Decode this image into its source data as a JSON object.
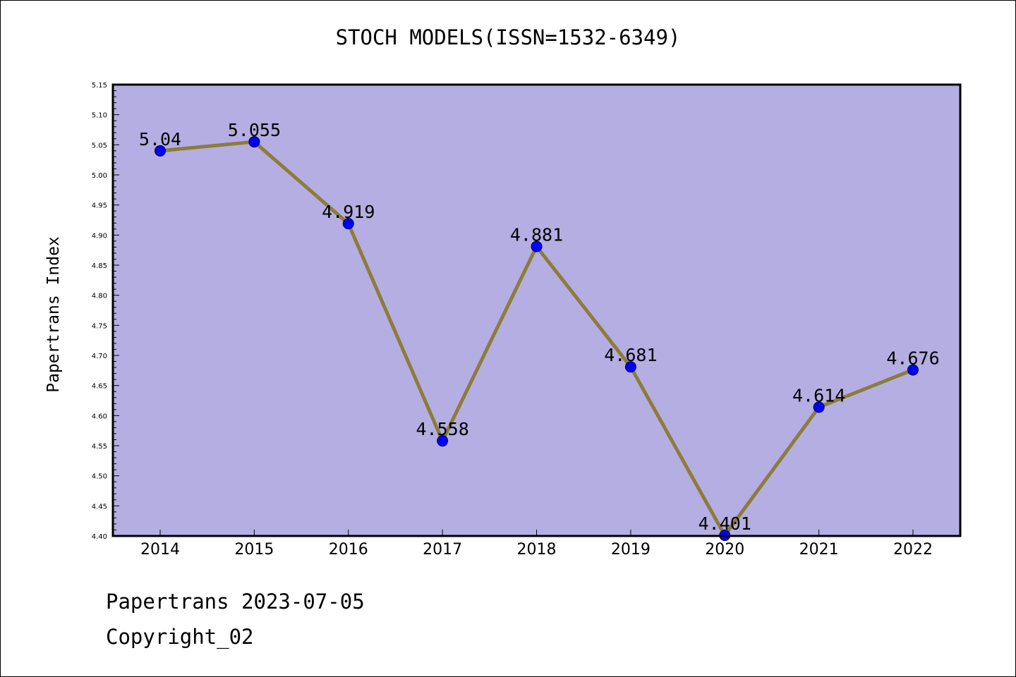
{
  "footer": {
    "date_text": "Papertrans 2023-07-05",
    "copyright": "Copyright_02"
  },
  "chart_data": {
    "type": "line",
    "title": "STOCH MODELS(ISSN=1532-6349)",
    "xlabel": "",
    "ylabel": "Papertrans Index",
    "categories": [
      "2014",
      "2015",
      "2016",
      "2017",
      "2018",
      "2019",
      "2020",
      "2021",
      "2022"
    ],
    "series": [
      {
        "values": [
          5.04,
          5.055,
          4.919,
          4.558,
          4.881,
          4.681,
          4.401,
          4.614,
          4.676
        ],
        "labels": [
          "5.04",
          "5.055",
          "4.919",
          "4.558",
          "4.881",
          "4.681",
          "4.401",
          "4.614",
          "4.676"
        ],
        "line_color": "#8b7d3a",
        "marker_color": "#0000ff"
      }
    ],
    "ylim": [
      4.4,
      5.15
    ],
    "yticks": [
      "4.40",
      "4.45",
      "4.50",
      "4.55",
      "4.60",
      "4.65",
      "4.70",
      "4.75",
      "4.80",
      "4.85",
      "4.90",
      "4.95",
      "5.00",
      "5.05",
      "5.10",
      "5.15"
    ],
    "plot_background": "#b5aee2",
    "grid": false,
    "legend": "none"
  }
}
